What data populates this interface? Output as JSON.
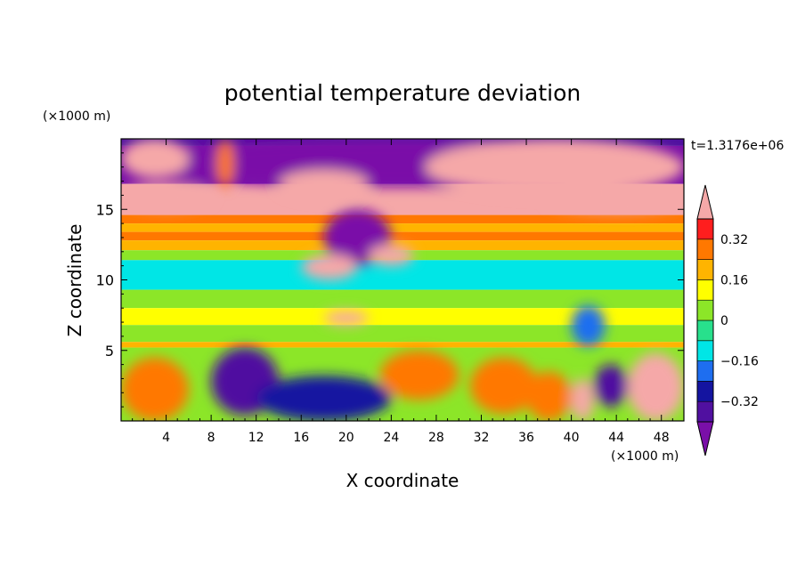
{
  "chart_data": {
    "type": "heatmap",
    "title": "potential temperature deviation",
    "xlabel": "X coordinate",
    "ylabel": "Z coordinate",
    "x_unit": "(×1000 m)",
    "y_unit": "(×1000 m)",
    "time_label": "t=1.3176e+06",
    "xlim": [
      0,
      50
    ],
    "ylim": [
      0,
      20
    ],
    "xticks": [
      4,
      8,
      12,
      16,
      20,
      24,
      28,
      32,
      36,
      40,
      44,
      48
    ],
    "yticks": [
      5,
      10,
      15
    ],
    "colorbar": {
      "levels": [
        -0.4,
        -0.32,
        -0.24,
        -0.16,
        -0.08,
        0,
        0.08,
        0.16,
        0.24,
        0.32,
        0.4
      ],
      "tick_labels": [
        "0.32",
        "0.16",
        "0",
        "−0.16",
        "−0.32"
      ],
      "tick_values": [
        0.32,
        0.16,
        0,
        -0.16,
        -0.32
      ],
      "colors": [
        "#7a0fa8",
        "#5010a0",
        "#1414a0",
        "#1e6ef0",
        "#00e6e6",
        "#28e08c",
        "#8ce628",
        "#ffff00",
        "#ffb400",
        "#ff7800",
        "#ff1e1e",
        "#f5a8a8"
      ],
      "extend": "both"
    },
    "layers": [
      {
        "z": [
          19.5,
          20
        ],
        "value": -0.38
      },
      {
        "z": [
          16.8,
          19.5
        ],
        "value": -0.44
      },
      {
        "z": [
          14.6,
          16.8
        ],
        "value": 0.43
      },
      {
        "z": [
          14.0,
          14.6
        ],
        "value": 0.3
      },
      {
        "z": [
          13.4,
          14.0
        ],
        "value": 0.2
      },
      {
        "z": [
          12.8,
          13.4
        ],
        "value": 0.26
      },
      {
        "z": [
          12.1,
          12.8
        ],
        "value": 0.18
      },
      {
        "z": [
          11.4,
          12.1
        ],
        "value": 0.05
      },
      {
        "z": [
          9.3,
          11.4
        ],
        "value": -0.1
      },
      {
        "z": [
          8.0,
          9.3
        ],
        "value": 0.02
      },
      {
        "z": [
          6.8,
          8.0
        ],
        "value": 0.1
      },
      {
        "z": [
          5.6,
          6.8
        ],
        "value": 0.03
      },
      {
        "z": [
          5.2,
          5.6
        ],
        "value": 0.22
      },
      {
        "z": [
          0,
          5.2
        ],
        "value": 0.02
      }
    ],
    "features": [
      {
        "x": [
          0,
          50
        ],
        "z": [
          16.6,
          20
        ],
        "value": -0.44
      },
      {
        "x": [
          0,
          6
        ],
        "z": [
          17.2,
          20
        ],
        "value": 0.43
      },
      {
        "x": [
          8.5,
          10
        ],
        "z": [
          16.5,
          20
        ],
        "value": 0.3
      },
      {
        "x": [
          14,
          22
        ],
        "z": [
          15.8,
          17.8
        ],
        "value": 0.43
      },
      {
        "x": [
          27,
          50
        ],
        "z": [
          16.0,
          20
        ],
        "value": 0.43
      },
      {
        "x": [
          0,
          8
        ],
        "z": [
          15.0,
          16.8
        ],
        "value": 0.43
      },
      {
        "x": [
          38,
          50
        ],
        "z": [
          14.8,
          16.2
        ],
        "value": 0.43
      },
      {
        "x": [
          18,
          24
        ],
        "z": [
          11.0,
          15.0
        ],
        "value": -0.44
      },
      {
        "x": [
          16,
          21
        ],
        "z": [
          10.0,
          11.8
        ],
        "value": 0.43
      },
      {
        "x": [
          22,
          26
        ],
        "z": [
          11.0,
          12.5
        ],
        "value": 0.43
      },
      {
        "x": [
          18,
          22
        ],
        "z": [
          6.8,
          7.8
        ],
        "value": 0.43
      },
      {
        "x": [
          40,
          43
        ],
        "z": [
          5.3,
          8.2
        ],
        "value": -0.18
      },
      {
        "x": [
          0,
          6
        ],
        "z": [
          0,
          4.5
        ],
        "value": 0.28
      },
      {
        "x": [
          8,
          14
        ],
        "z": [
          0.4,
          5.2
        ],
        "value": -0.36
      },
      {
        "x": [
          12,
          24
        ],
        "z": [
          0,
          3.2
        ],
        "value": -0.3
      },
      {
        "x": [
          23,
          30
        ],
        "z": [
          1.5,
          5.0
        ],
        "value": 0.3
      },
      {
        "x": [
          31,
          37
        ],
        "z": [
          0.5,
          4.5
        ],
        "value": 0.26
      },
      {
        "x": [
          36,
          40
        ],
        "z": [
          0,
          3.5
        ],
        "value": 0.3
      },
      {
        "x": [
          40,
          42
        ],
        "z": [
          0,
          3.0
        ],
        "value": 0.43
      },
      {
        "x": [
          42,
          45
        ],
        "z": [
          1.0,
          4.0
        ],
        "value": -0.36
      },
      {
        "x": [
          45,
          50
        ],
        "z": [
          0,
          4.8
        ],
        "value": 0.43
      }
    ]
  }
}
